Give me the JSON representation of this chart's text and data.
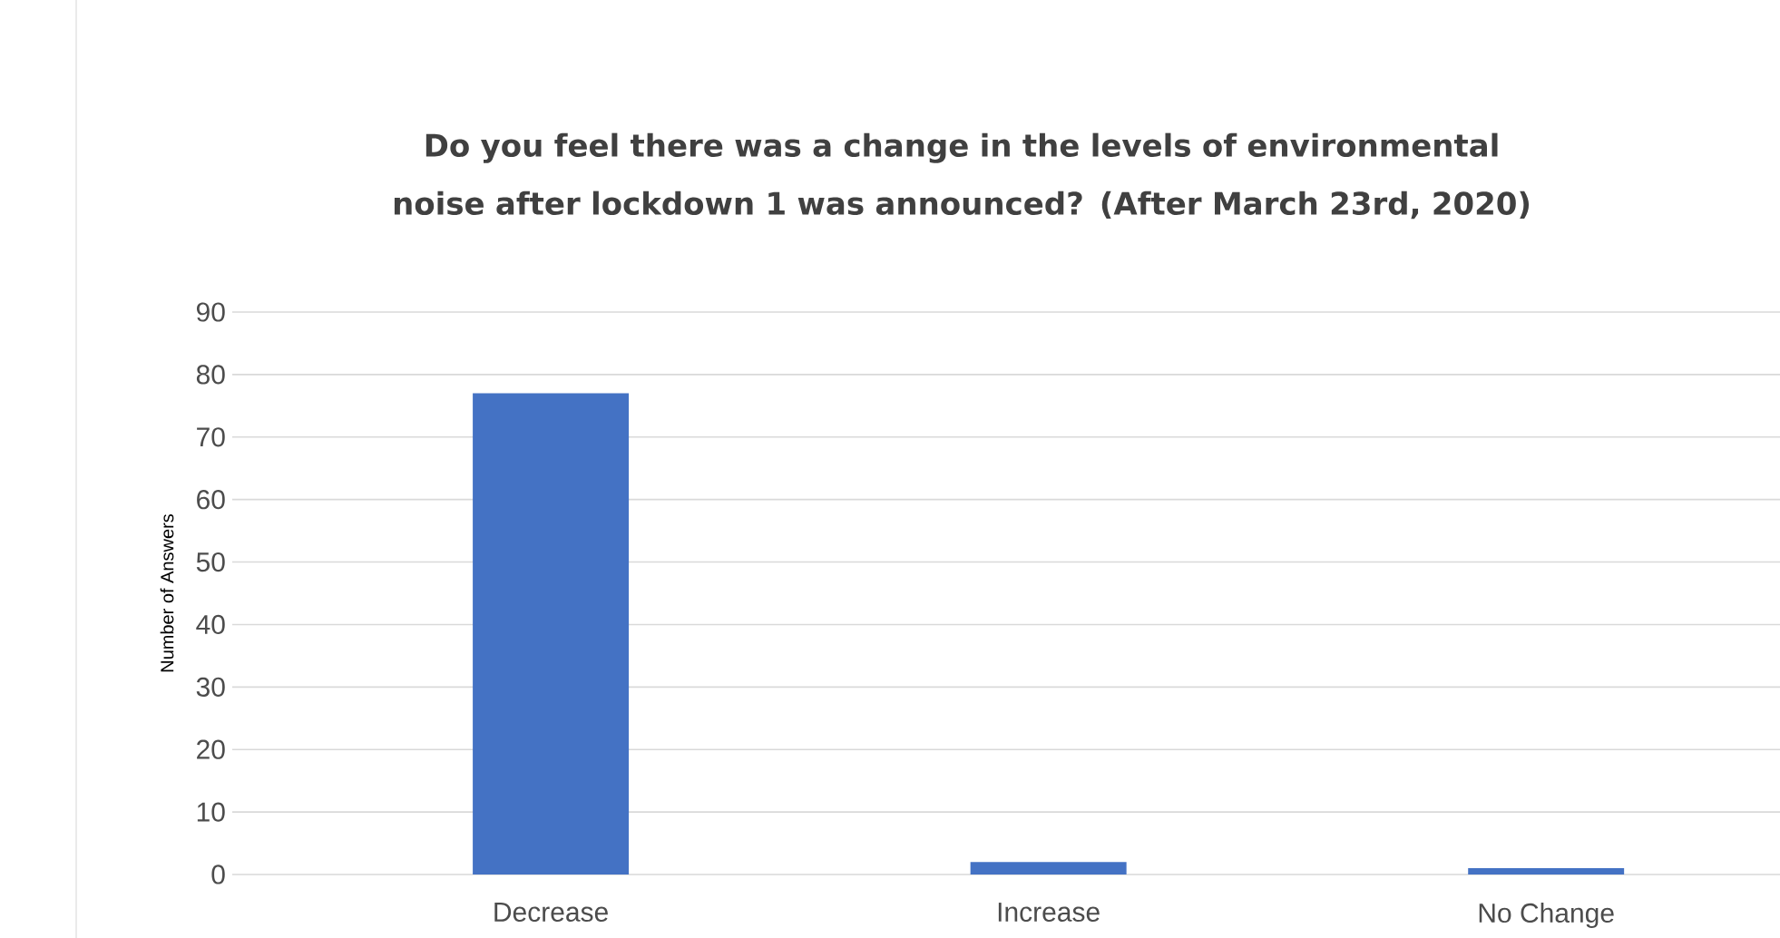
{
  "chart_data": {
    "type": "bar",
    "title": "Do you feel there was a change in the levels of environmental noise after lockdown 1 was announced? (After March 23rd, 2020)",
    "ylabel": "Number of Answers",
    "categories": [
      "Decrease",
      "Increase",
      "No Change"
    ],
    "values": [
      77,
      2,
      1
    ],
    "color": "#4472c4",
    "ylim": [
      0,
      90
    ],
    "yticks": [
      0,
      10,
      20,
      30,
      40,
      50,
      60,
      70,
      80,
      90
    ],
    "grid": "y"
  }
}
